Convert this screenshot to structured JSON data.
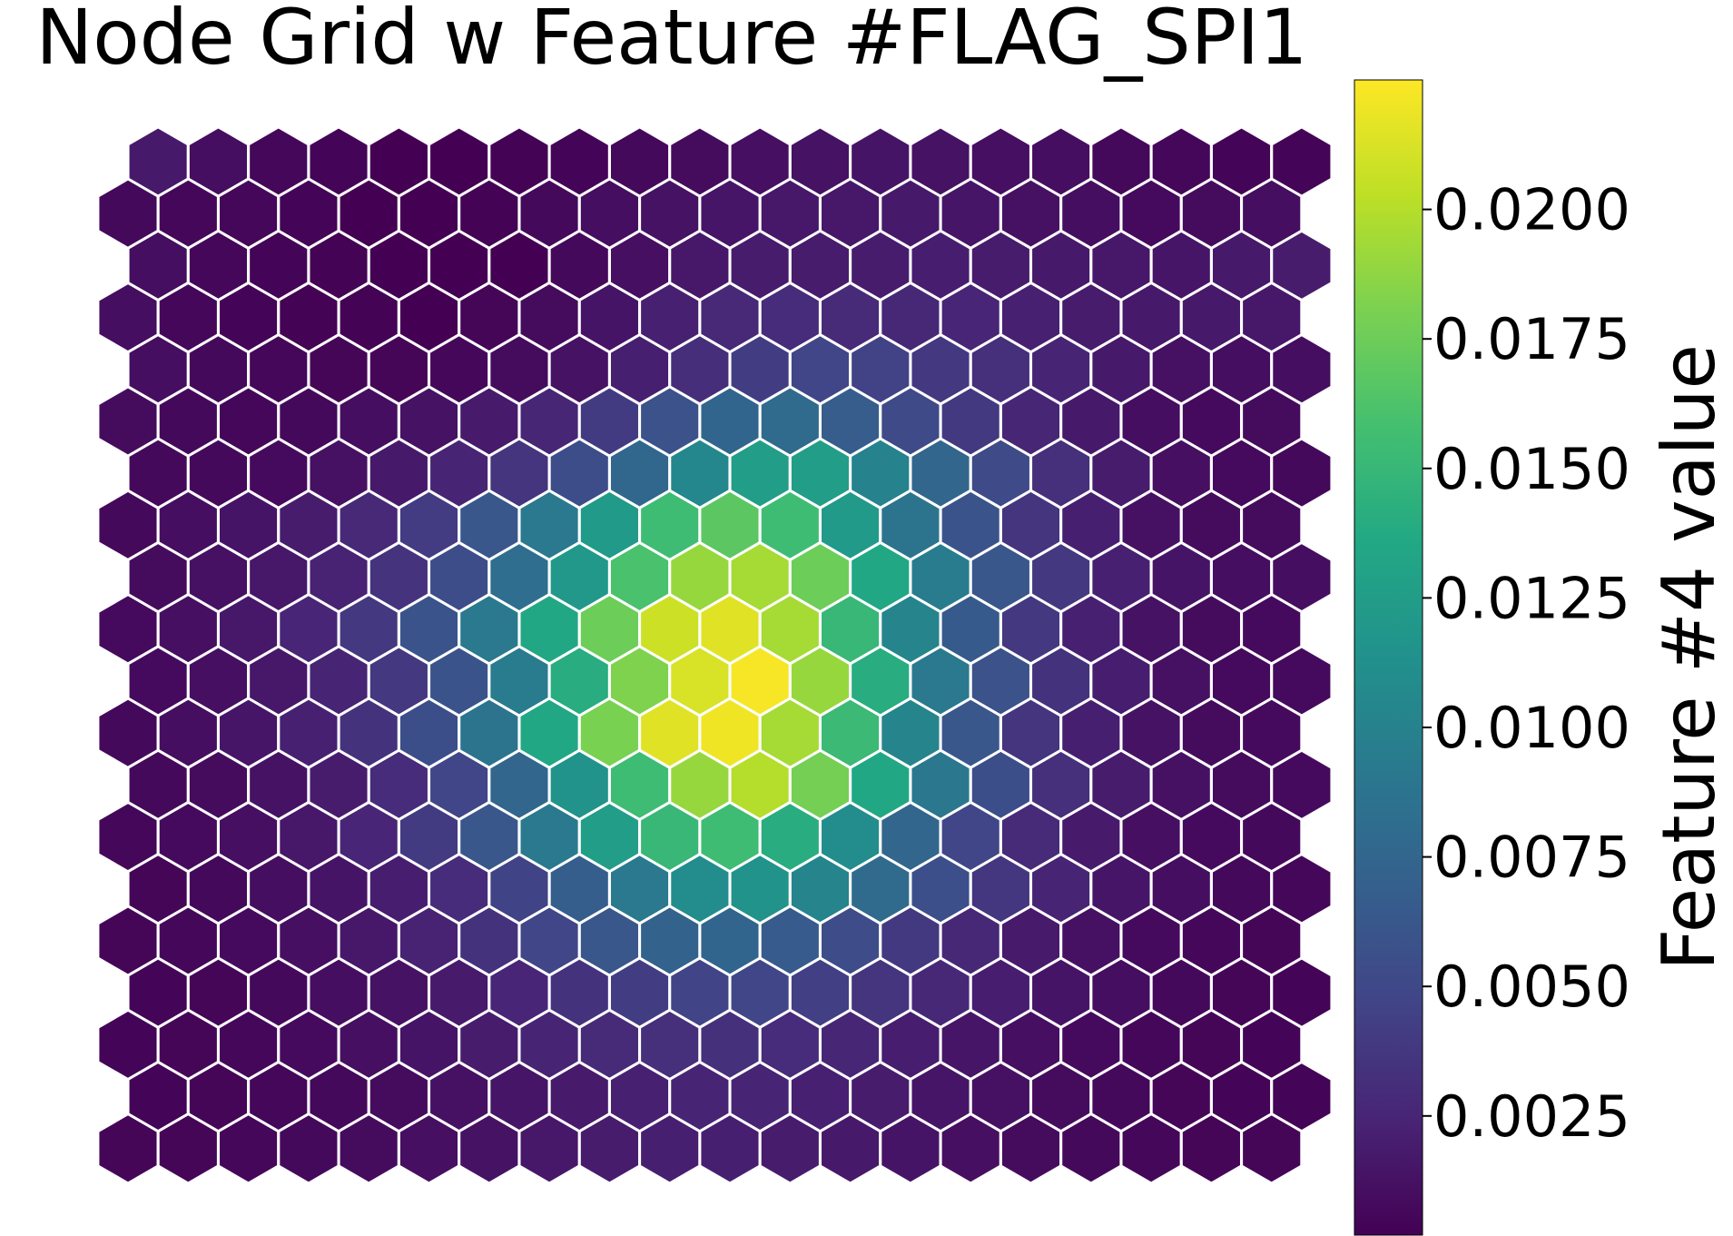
{
  "chart_data": {
    "type": "heatmap",
    "layout": "hexagonal",
    "title": "Node Grid w Feature #FLAG_SPI1",
    "colorbar_label": "Feature #4 value",
    "colormap": "viridis",
    "colorbar_range": [
      0.0002,
      0.0225
    ],
    "colorbar_ticks": [
      "0.0025",
      "0.0050",
      "0.0075",
      "0.0100",
      "0.0125",
      "0.0150",
      "0.0175",
      "0.0200"
    ],
    "grid_rows": 20,
    "grid_cols": 20,
    "peak_value": 0.0223,
    "peak_row": 12,
    "peak_col": 10.5,
    "values": [
      [
        0.0017,
        0.001,
        0.0006,
        0.0004,
        0.0002,
        0.0002,
        0.0003,
        0.0004,
        0.0007,
        0.0009,
        0.0011,
        0.0013,
        0.0014,
        0.0013,
        0.0011,
        0.001,
        0.0007,
        0.0006,
        0.0004,
        0.0004
      ],
      [
        0.0007,
        0.0006,
        0.0006,
        0.0004,
        0.0002,
        0.0002,
        0.0003,
        0.0007,
        0.001,
        0.0013,
        0.0015,
        0.0016,
        0.0016,
        0.0017,
        0.0015,
        0.0012,
        0.001,
        0.0008,
        0.0009,
        0.001
      ],
      [
        0.001,
        0.0006,
        0.0004,
        0.0003,
        0.0002,
        0.0002,
        0.0002,
        0.0007,
        0.0011,
        0.0016,
        0.0019,
        0.0019,
        0.0019,
        0.002,
        0.0019,
        0.0017,
        0.0016,
        0.0015,
        0.0017,
        0.0019
      ],
      [
        0.001,
        0.0006,
        0.0004,
        0.0003,
        0.0003,
        0.0002,
        0.0005,
        0.0009,
        0.0014,
        0.0022,
        0.0028,
        0.003,
        0.0029,
        0.0027,
        0.0025,
        0.0022,
        0.0019,
        0.0017,
        0.0017,
        0.0016
      ],
      [
        0.001,
        0.0007,
        0.0006,
        0.0005,
        0.0005,
        0.0006,
        0.0009,
        0.0013,
        0.0021,
        0.0031,
        0.0042,
        0.0048,
        0.0045,
        0.0038,
        0.0032,
        0.0024,
        0.0017,
        0.0012,
        0.001,
        0.001
      ],
      [
        0.0009,
        0.0007,
        0.0006,
        0.0007,
        0.001,
        0.0013,
        0.0018,
        0.0026,
        0.004,
        0.0058,
        0.0074,
        0.0079,
        0.0067,
        0.0052,
        0.0039,
        0.0026,
        0.0017,
        0.001,
        0.0008,
        0.0009
      ],
      [
        0.0007,
        0.0007,
        0.0008,
        0.0012,
        0.0017,
        0.0024,
        0.0036,
        0.0054,
        0.0076,
        0.0105,
        0.0125,
        0.0125,
        0.01,
        0.0075,
        0.0052,
        0.0032,
        0.0019,
        0.0011,
        0.0008,
        0.0007
      ],
      [
        0.0007,
        0.001,
        0.0014,
        0.0019,
        0.0028,
        0.0041,
        0.0062,
        0.0092,
        0.0122,
        0.0155,
        0.0168,
        0.0155,
        0.0122,
        0.0088,
        0.006,
        0.0036,
        0.0021,
        0.0012,
        0.0009,
        0.0009
      ],
      [
        0.0009,
        0.0012,
        0.0016,
        0.0023,
        0.0035,
        0.0054,
        0.0082,
        0.012,
        0.016,
        0.019,
        0.0195,
        0.0175,
        0.0135,
        0.0095,
        0.0062,
        0.0038,
        0.0022,
        0.0014,
        0.001,
        0.001
      ],
      [
        0.0008,
        0.0011,
        0.0016,
        0.0025,
        0.0038,
        0.006,
        0.0092,
        0.0135,
        0.0175,
        0.0208,
        0.0215,
        0.0195,
        0.015,
        0.0102,
        0.0065,
        0.0038,
        0.0022,
        0.0013,
        0.0009,
        0.0008
      ],
      [
        0.0008,
        0.0011,
        0.0016,
        0.0024,
        0.0038,
        0.006,
        0.0094,
        0.014,
        0.0182,
        0.0212,
        0.0223,
        0.019,
        0.014,
        0.0092,
        0.0058,
        0.0034,
        0.002,
        0.0012,
        0.0008,
        0.0008
      ],
      [
        0.0007,
        0.001,
        0.0015,
        0.0022,
        0.0034,
        0.0055,
        0.0088,
        0.0135,
        0.018,
        0.0215,
        0.022,
        0.0195,
        0.0152,
        0.0102,
        0.0062,
        0.0036,
        0.0021,
        0.0013,
        0.0009,
        0.0008
      ],
      [
        0.0007,
        0.0009,
        0.0013,
        0.0019,
        0.003,
        0.0048,
        0.0075,
        0.0115,
        0.0155,
        0.019,
        0.02,
        0.0178,
        0.0135,
        0.009,
        0.0055,
        0.0032,
        0.0019,
        0.0012,
        0.0009,
        0.0008
      ],
      [
        0.0006,
        0.0008,
        0.0011,
        0.0016,
        0.0025,
        0.004,
        0.0062,
        0.0092,
        0.0125,
        0.015,
        0.0155,
        0.014,
        0.011,
        0.0075,
        0.0048,
        0.0029,
        0.0018,
        0.0011,
        0.0008,
        0.0007
      ],
      [
        0.0005,
        0.0007,
        0.001,
        0.0014,
        0.002,
        0.003,
        0.0046,
        0.0068,
        0.0092,
        0.011,
        0.0115,
        0.0102,
        0.008,
        0.0056,
        0.0037,
        0.0024,
        0.0015,
        0.001,
        0.0007,
        0.0006
      ],
      [
        0.0005,
        0.0006,
        0.0008,
        0.0011,
        0.0016,
        0.0023,
        0.0034,
        0.0048,
        0.0062,
        0.0072,
        0.0074,
        0.0066,
        0.0053,
        0.0039,
        0.0027,
        0.0018,
        0.0012,
        0.0008,
        0.0006,
        0.0005
      ],
      [
        0.0004,
        0.0005,
        0.0007,
        0.001,
        0.0013,
        0.0018,
        0.0025,
        0.0034,
        0.0042,
        0.0047,
        0.0048,
        0.0043,
        0.0036,
        0.0027,
        0.002,
        0.0014,
        0.001,
        0.0007,
        0.0005,
        0.0004
      ],
      [
        0.0004,
        0.0005,
        0.0006,
        0.0008,
        0.0011,
        0.0014,
        0.0019,
        0.0024,
        0.0029,
        0.0032,
        0.0033,
        0.003,
        0.0026,
        0.002,
        0.0015,
        0.0011,
        0.0008,
        0.0006,
        0.0005,
        0.0004
      ],
      [
        0.0004,
        0.0005,
        0.0006,
        0.0007,
        0.0009,
        0.0012,
        0.0015,
        0.0018,
        0.0022,
        0.0024,
        0.0024,
        0.0022,
        0.0019,
        0.0015,
        0.0012,
        0.0009,
        0.0007,
        0.0005,
        0.0004,
        0.0004
      ],
      [
        0.0005,
        0.0005,
        0.0006,
        0.0007,
        0.0009,
        0.0011,
        0.0013,
        0.0016,
        0.0019,
        0.0021,
        0.0021,
        0.0019,
        0.0017,
        0.0014,
        0.0011,
        0.0009,
        0.0007,
        0.0006,
        0.0005,
        0.0005
      ]
    ]
  }
}
